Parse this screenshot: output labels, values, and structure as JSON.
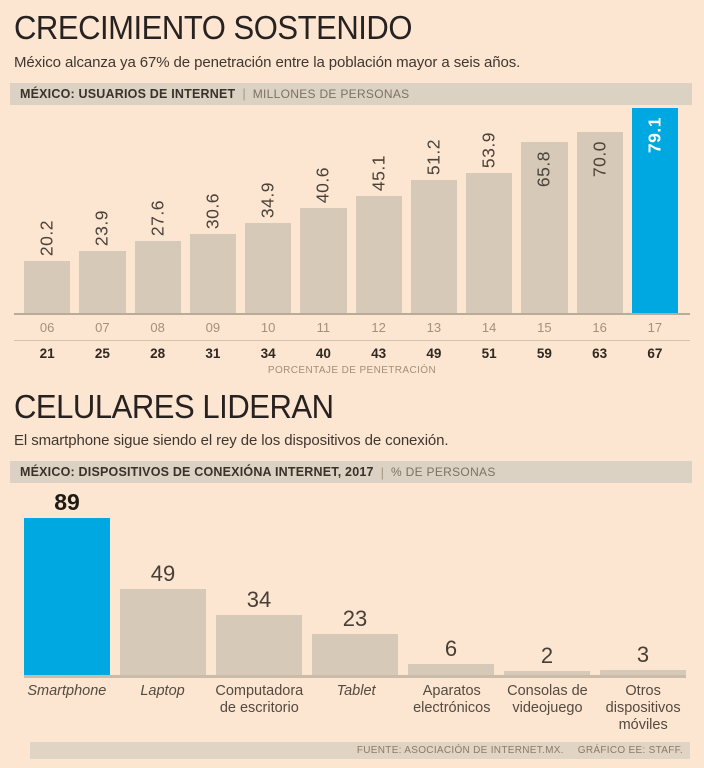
{
  "accent_color": "#00a8e1",
  "bar_color": "#d7c9b8",
  "section1": {
    "title": "CRECIMIENTO SOSTENIDO",
    "subtitle": "México alcanza ya 67% de penetración entre la población mayor a seis años.",
    "strip_label": "MÉXICO: USUARIOS DE INTERNET",
    "strip_separator": "|",
    "strip_unit": "MILLONES DE PERSONAS",
    "axis_caption": "PORCENTAJE DE PENETRACIÓN"
  },
  "section2": {
    "title": "CELULARES LIDERAN",
    "subtitle": "El smartphone sigue siendo el rey de los dispositivos de conexión.",
    "strip_label": "MÉXICO: DISPOSITIVOS DE CONEXIÓNA INTERNET, 2017",
    "strip_separator": "|",
    "strip_unit": "% DE PERSONAS"
  },
  "footer": {
    "source": "FUENTE: ASOCIACIÓN DE INTERNET.MX.",
    "credit": "GRÁFICO EE: STAFF."
  },
  "chart_data": [
    {
      "type": "bar",
      "title": "MÉXICO: USUARIOS DE INTERNET",
      "ylabel": "MILLONES DE PERSONAS",
      "categories": [
        "06",
        "07",
        "08",
        "09",
        "10",
        "11",
        "12",
        "13",
        "14",
        "15",
        "16",
        "17"
      ],
      "values": [
        20.2,
        23.9,
        27.6,
        30.6,
        34.9,
        40.6,
        45.1,
        51.2,
        53.9,
        65.8,
        70.0,
        79.1
      ],
      "value_labels": [
        "20.2",
        "23.9",
        "27.6",
        "30.6",
        "34.9",
        "40.6",
        "45.1",
        "51.2",
        "53.9",
        "65.8",
        "70.0",
        "79.1"
      ],
      "penetration_pct": [
        21,
        25,
        28,
        31,
        34,
        40,
        43,
        49,
        51,
        59,
        63,
        67
      ],
      "pct_caption": "PORCENTAJE DE PENETRACIÓN",
      "highlight_index": 11,
      "ylim": [
        0,
        79.1
      ],
      "grid": false,
      "legend": false
    },
    {
      "type": "bar",
      "title": "MÉXICO: DISPOSITIVOS DE CONEXIÓNA INTERNET, 2017",
      "ylabel": "% DE PERSONAS",
      "categories": [
        "Smartphone",
        "Laptop",
        "Computadora de escritorio",
        "Tablet",
        "Aparatos electrónicos",
        "Consolas de videojuego",
        "Otros dispositivos móviles"
      ],
      "italic_categories": [
        true,
        true,
        false,
        true,
        false,
        false,
        false
      ],
      "values": [
        89,
        49,
        34,
        23,
        6,
        2,
        3
      ],
      "highlight_index": 0,
      "ylim": [
        0,
        89
      ],
      "grid": false,
      "legend": false
    }
  ]
}
